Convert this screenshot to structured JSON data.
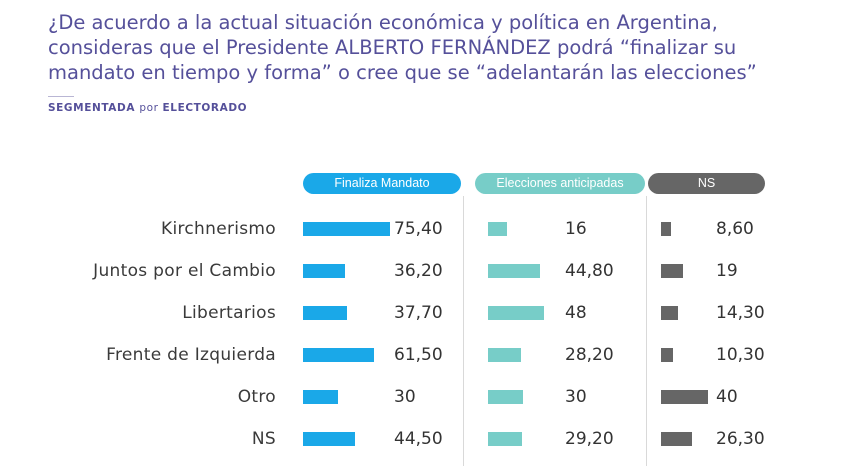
{
  "header": {
    "title": "¿De acuerdo a la actual situación económica y política en Argentina, consideras que el Presidente ALBERTO FERNÁNDEZ podrá “finalizar su mandato en tiempo y forma” o cree que se “adelantarán las elecciones”",
    "subtitle_part1": "SEGMENTADA ",
    "subtitle_part2": "por ",
    "subtitle_part3": "ELECTORADO"
  },
  "chart_data": {
    "type": "bar",
    "categories": [
      "Kirchnerismo",
      "Juntos por el Cambio",
      "Libertarios",
      "Frente de Izquierda",
      "Otro",
      "NS"
    ],
    "series": [
      {
        "name": "Finaliza Mandato",
        "color": "#1aa8e8",
        "values": [
          "75,40",
          "36,20",
          "37,70",
          "61,50",
          "30",
          "44,50"
        ]
      },
      {
        "name": "Elecciones anticipadas",
        "color": "#77cdc8",
        "values": [
          "16",
          "44,80",
          "48",
          "28,20",
          "30",
          "29,20"
        ]
      },
      {
        "name": "NS",
        "color": "#666666",
        "values": [
          "8,60",
          "19",
          "14,30",
          "10,30",
          "40",
          "26,30"
        ]
      }
    ],
    "grid": false,
    "legend": "top"
  }
}
